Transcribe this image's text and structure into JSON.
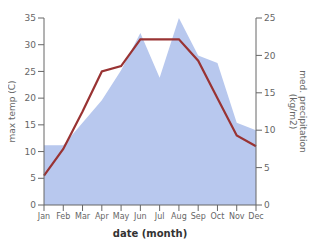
{
  "chart_data": {
    "type": "line",
    "categories": [
      "Jan",
      "Feb",
      "Mar",
      "Apr",
      "May",
      "Jun",
      "Jul",
      "Aug",
      "Sep",
      "Oct",
      "Nov",
      "Dec"
    ],
    "series": [
      {
        "type": "area",
        "color": "#b8c8ee",
        "axis": "y2",
        "values": [
          8,
          8,
          11,
          14,
          18,
          23,
          17,
          25,
          20,
          19,
          11,
          10
        ]
      },
      {
        "type": "line",
        "color": "#993333",
        "values": [
          5.5,
          10.5,
          17.5,
          25.0,
          26.0,
          31.0,
          31.0,
          31.0,
          27.0,
          20.0,
          13.0,
          11.0
        ]
      }
    ],
    "xlabel": "date (month)",
    "ylabel": "max temp (C)",
    "y2label": "med. precipitation\n(kg/m2)",
    "ylim": [
      0,
      35
    ],
    "yticks": [
      0,
      5,
      10,
      15,
      20,
      25,
      30,
      35
    ],
    "y2lim": [
      0,
      25
    ],
    "y2ticks": [
      0,
      5,
      10,
      15,
      20,
      25
    ],
    "grid": false
  }
}
